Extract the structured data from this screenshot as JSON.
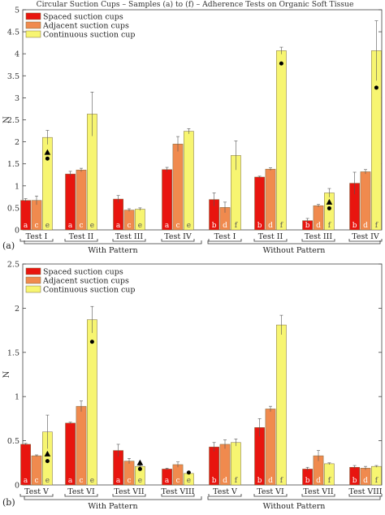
{
  "title": "Circular Suction Cups – Samples (a) to (f) – Adherence Tests on Organic Soft Tissue",
  "colors": {
    "spaced": "#e8150f",
    "adjacent": "#f08a4e",
    "continuous": "#f7f571",
    "bar_stroke": "#7a6a40"
  },
  "chart_data": [
    {
      "panel_label": "(a)",
      "type": "bar",
      "ylabel": "N",
      "ylim": [
        0,
        5
      ],
      "yticks": [
        "0",
        "0.5",
        "1",
        "1.5",
        "2",
        "2.5",
        "3",
        "3.5",
        "4",
        "4.5",
        "5"
      ],
      "legend": [
        "Spaced suction cups",
        "Adjacent suction cups",
        "Continuous suction cup"
      ],
      "legend_position": "top-left",
      "groups": [
        "With Pattern",
        "Without Pattern"
      ],
      "tests": [
        {
          "name": "Test I",
          "group": 0,
          "bars": [
            {
              "s": 0,
              "label": "a",
              "value": 0.67,
              "err": 0.04
            },
            {
              "s": 1,
              "label": "c",
              "value": 0.67,
              "err": 0.1
            },
            {
              "s": 2,
              "label": "e",
              "value": 2.1,
              "err": 0.16
            }
          ],
          "markers": [
            {
              "shape": "triangle",
              "value": 1.76
            },
            {
              "shape": "circle",
              "value": 1.62
            }
          ]
        },
        {
          "name": "Test II",
          "group": 0,
          "bars": [
            {
              "s": 0,
              "label": "a",
              "value": 1.27,
              "err": 0.06
            },
            {
              "s": 1,
              "label": "c",
              "value": 1.36,
              "err": 0.04
            },
            {
              "s": 2,
              "label": "e",
              "value": 2.63,
              "err": 0.5
            }
          ],
          "markers": []
        },
        {
          "name": "Test III",
          "group": 0,
          "bars": [
            {
              "s": 0,
              "label": "a",
              "value": 0.7,
              "err": 0.08
            },
            {
              "s": 1,
              "label": "c",
              "value": 0.45,
              "err": 0.03
            },
            {
              "s": 2,
              "label": "e",
              "value": 0.47,
              "err": 0.03
            }
          ],
          "markers": []
        },
        {
          "name": "Test IV",
          "group": 0,
          "bars": [
            {
              "s": 0,
              "label": "a",
              "value": 1.37,
              "err": 0.05
            },
            {
              "s": 1,
              "label": "c",
              "value": 1.95,
              "err": 0.17
            },
            {
              "s": 2,
              "label": "e",
              "value": 2.24,
              "err": 0.06
            }
          ],
          "markers": []
        },
        {
          "name": "Test I",
          "group": 1,
          "bars": [
            {
              "s": 0,
              "label": "b",
              "value": 0.69,
              "err": 0.15
            },
            {
              "s": 1,
              "label": "d",
              "value": 0.51,
              "err": 0.12
            },
            {
              "s": 2,
              "label": "f",
              "value": 1.69,
              "err": 0.33
            }
          ],
          "markers": []
        },
        {
          "name": "Test II",
          "group": 1,
          "bars": [
            {
              "s": 0,
              "label": "b",
              "value": 1.2,
              "err": 0.02
            },
            {
              "s": 1,
              "label": "d",
              "value": 1.38,
              "err": 0.03
            },
            {
              "s": 2,
              "label": "f",
              "value": 4.07,
              "err": 0.08
            }
          ],
          "markers": [
            {
              "shape": "circle",
              "value": 3.78
            }
          ]
        },
        {
          "name": "Test III",
          "group": 1,
          "bars": [
            {
              "s": 0,
              "label": "b",
              "value": 0.21,
              "err": 0.05
            },
            {
              "s": 1,
              "label": "d",
              "value": 0.55,
              "err": 0.03
            },
            {
              "s": 2,
              "label": "f",
              "value": 0.84,
              "err": 0.1
            }
          ],
          "markers": [
            {
              "shape": "triangle",
              "value": 0.63
            },
            {
              "shape": "circle",
              "value": 0.49
            }
          ]
        },
        {
          "name": "Test IV",
          "group": 1,
          "bars": [
            {
              "s": 0,
              "label": "b",
              "value": 1.06,
              "err": 0.25
            },
            {
              "s": 1,
              "label": "d",
              "value": 1.32,
              "err": 0.05
            },
            {
              "s": 2,
              "label": "f",
              "value": 4.07,
              "err": 0.68
            }
          ],
          "markers": [
            {
              "shape": "circle",
              "value": 3.23
            }
          ]
        }
      ]
    },
    {
      "panel_label": "(b)",
      "type": "bar",
      "ylabel": "N",
      "ylim": [
        0,
        2.5
      ],
      "yticks": [
        "0",
        "0.5",
        "1",
        "1.5",
        "2",
        "2.5"
      ],
      "legend": [
        "Spaced suction cups",
        "Adjacent suction cups",
        "Continuous suction cup"
      ],
      "legend_position": "top-left",
      "groups": [
        "With Pattern",
        "Without Pattern"
      ],
      "tests": [
        {
          "name": "Test V",
          "group": 0,
          "bars": [
            {
              "s": 0,
              "label": "a",
              "value": 0.46,
              "err": 0.01
            },
            {
              "s": 1,
              "label": "c",
              "value": 0.33,
              "err": 0.01
            },
            {
              "s": 2,
              "label": "e",
              "value": 0.6,
              "err": 0.19
            }
          ],
          "markers": [
            {
              "shape": "triangle",
              "value": 0.35
            },
            {
              "shape": "circle",
              "value": 0.27
            }
          ]
        },
        {
          "name": "Test VI",
          "group": 0,
          "bars": [
            {
              "s": 0,
              "label": "a",
              "value": 0.7,
              "err": 0.01
            },
            {
              "s": 1,
              "label": "c",
              "value": 0.89,
              "err": 0.06
            },
            {
              "s": 2,
              "label": "e",
              "value": 1.87,
              "err": 0.15
            }
          ],
          "markers": [
            {
              "shape": "circle",
              "value": 1.62
            }
          ]
        },
        {
          "name": "Test VII",
          "group": 0,
          "bars": [
            {
              "s": 0,
              "label": "a",
              "value": 0.39,
              "err": 0.07
            },
            {
              "s": 1,
              "label": "c",
              "value": 0.27,
              "err": 0.03
            },
            {
              "s": 2,
              "label": "e",
              "value": 0.21,
              "err": 0.01
            }
          ],
          "markers": [
            {
              "shape": "triangle",
              "value": 0.25
            },
            {
              "shape": "circle",
              "value": 0.18
            }
          ]
        },
        {
          "name": "Test VIII",
          "group": 0,
          "bars": [
            {
              "s": 0,
              "label": "a",
              "value": 0.18,
              "err": 0.01
            },
            {
              "s": 1,
              "label": "c",
              "value": 0.23,
              "err": 0.03
            },
            {
              "s": 2,
              "label": "e",
              "value": 0.13,
              "err": 0.01
            }
          ],
          "markers": [
            {
              "shape": "circle",
              "value": 0.14
            }
          ]
        },
        {
          "name": "Test V",
          "group": 1,
          "bars": [
            {
              "s": 0,
              "label": "b",
              "value": 0.43,
              "err": 0.05
            },
            {
              "s": 1,
              "label": "d",
              "value": 0.46,
              "err": 0.05
            },
            {
              "s": 2,
              "label": "f",
              "value": 0.48,
              "err": 0.04
            }
          ],
          "markers": []
        },
        {
          "name": "Test VI",
          "group": 1,
          "bars": [
            {
              "s": 0,
              "label": "b",
              "value": 0.65,
              "err": 0.1
            },
            {
              "s": 1,
              "label": "d",
              "value": 0.86,
              "err": 0.03
            },
            {
              "s": 2,
              "label": "f",
              "value": 1.81,
              "err": 0.11
            }
          ],
          "markers": []
        },
        {
          "name": "Test VII",
          "group": 1,
          "bars": [
            {
              "s": 0,
              "label": "b",
              "value": 0.18,
              "err": 0.02
            },
            {
              "s": 1,
              "label": "d",
              "value": 0.33,
              "err": 0.06
            },
            {
              "s": 2,
              "label": "f",
              "value": 0.24,
              "err": 0.01
            }
          ],
          "markers": []
        },
        {
          "name": "Test VIII",
          "group": 1,
          "bars": [
            {
              "s": 0,
              "label": "b",
              "value": 0.2,
              "err": 0.02
            },
            {
              "s": 1,
              "label": "d",
              "value": 0.19,
              "err": 0.02
            },
            {
              "s": 2,
              "label": "f",
              "value": 0.21,
              "err": 0.01
            }
          ],
          "markers": []
        }
      ]
    }
  ]
}
